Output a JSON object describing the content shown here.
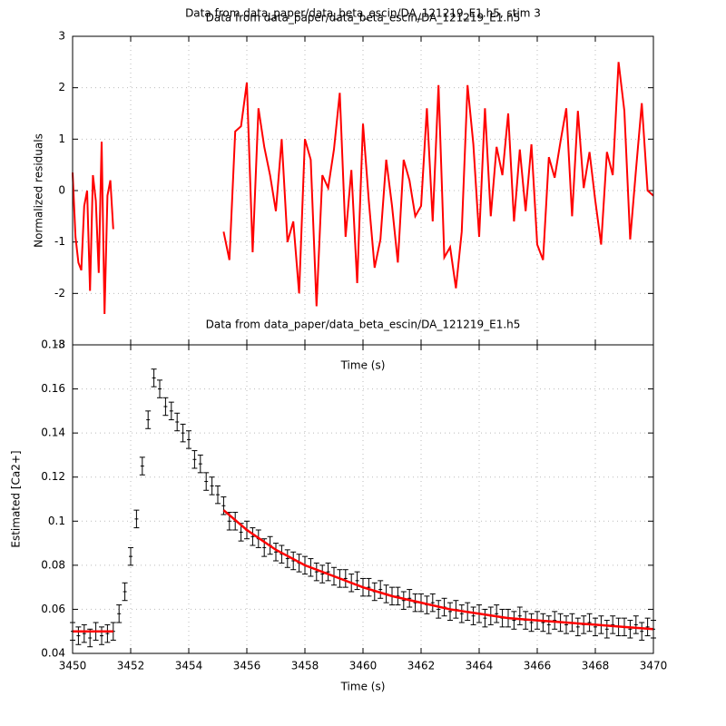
{
  "chart_data": [
    {
      "type": "line",
      "title": "Data from data_paper/data_beta_escin/DA_121219_E1.h5, stim 3",
      "annotations": [
        "Data from data_paper/data_beta_escin/DA_121219_E1.h5",
        "Data from data_paper/data_beta_escin/DA_121219_E1.h5"
      ],
      "xlabel": "Time (s)",
      "ylabel": "Normalized residuals",
      "xlim": [
        3450,
        3470
      ],
      "xticks": [
        3450,
        3452,
        3454,
        3456,
        3458,
        3460,
        3462,
        3464,
        3466,
        3468,
        3470
      ],
      "ylim": [
        -3,
        3
      ],
      "yticks": [
        -3,
        -2,
        -1,
        0,
        1,
        2,
        3
      ],
      "grid": true,
      "series": [
        {
          "color": "#ff0000",
          "x": [
            3450.0,
            3450.1,
            3450.2,
            3450.3,
            3450.4,
            3450.5,
            3450.6,
            3450.7,
            3450.8,
            3450.9,
            3451.0,
            3451.1,
            3451.2,
            3451.3,
            3451.4
          ],
          "values": [
            0.35,
            -0.9,
            -1.4,
            -1.55,
            -0.3,
            0.0,
            -1.95,
            0.3,
            -0.2,
            -1.6,
            0.95,
            -2.4,
            -0.1,
            0.2,
            -0.75
          ]
        },
        {
          "color": "#ff0000",
          "x": [
            3455.2,
            3455.4,
            3455.6,
            3455.8,
            3456.0,
            3456.2,
            3456.4,
            3456.6,
            3456.8,
            3457.0,
            3457.2,
            3457.4,
            3457.6,
            3457.8,
            3458.0,
            3458.2,
            3458.4,
            3458.6,
            3458.8,
            3459.0,
            3459.2,
            3459.4,
            3459.6,
            3459.8,
            3460.0,
            3460.2,
            3460.4,
            3460.6,
            3460.8,
            3461.0,
            3461.2,
            3461.4,
            3461.6,
            3461.8,
            3462.0,
            3462.2,
            3462.4,
            3462.6,
            3462.8,
            3463.0,
            3463.2,
            3463.4,
            3463.6,
            3463.8,
            3464.0,
            3464.2,
            3464.4,
            3464.6,
            3464.8,
            3465.0,
            3465.2,
            3465.4,
            3465.6,
            3465.8,
            3466.0,
            3466.2,
            3466.4,
            3466.6,
            3466.8,
            3467.0,
            3467.2,
            3467.4,
            3467.6,
            3467.8,
            3468.0,
            3468.2,
            3468.4,
            3468.6,
            3468.8,
            3469.0,
            3469.2,
            3469.4,
            3469.6,
            3469.8,
            3470.0
          ],
          "values": [
            -0.8,
            -1.35,
            1.15,
            1.25,
            2.1,
            -1.2,
            1.6,
            0.85,
            0.3,
            -0.4,
            1.0,
            -1.0,
            -0.6,
            -2.0,
            1.0,
            0.6,
            -2.25,
            0.3,
            0.05,
            0.8,
            1.9,
            -0.9,
            0.4,
            -1.8,
            1.3,
            -0.2,
            -1.5,
            -0.95,
            0.6,
            -0.3,
            -1.4,
            0.6,
            0.2,
            -0.5,
            -0.3,
            1.6,
            -0.6,
            2.05,
            -1.3,
            -1.1,
            -1.9,
            -0.8,
            2.05,
            0.9,
            -0.9,
            1.6,
            -0.5,
            0.85,
            0.3,
            1.5,
            -0.6,
            0.8,
            -0.4,
            0.9,
            -1.05,
            -1.35,
            0.65,
            0.25,
            0.95,
            1.6,
            -0.5,
            1.55,
            0.05,
            0.75,
            -0.2,
            -1.05,
            0.75,
            0.3,
            2.5,
            1.55,
            -0.95,
            0.4,
            1.7,
            0,
            -0.1
          ]
        }
      ]
    },
    {
      "type": "errorbar",
      "xlabel": "Time (s)",
      "ylabel": "Estimated [Ca2+]",
      "xlim": [
        3450,
        3470
      ],
      "xticks": [
        3450,
        3452,
        3454,
        3456,
        3458,
        3460,
        3462,
        3464,
        3466,
        3468,
        3470
      ],
      "ylim": [
        0.04,
        0.18
      ],
      "yticks": [
        0.04,
        0.06,
        0.08,
        0.1,
        0.12,
        0.14,
        0.16,
        0.18
      ],
      "grid": true,
      "error": 0.004,
      "series": [
        {
          "color": "#000000",
          "x": [
            3450.0,
            3450.2,
            3450.4,
            3450.6,
            3450.8,
            3451.0,
            3451.2,
            3451.4,
            3451.6,
            3451.8,
            3452.0,
            3452.2,
            3452.4,
            3452.6,
            3452.8,
            3453.0,
            3453.2,
            3453.4,
            3453.6,
            3453.8,
            3454.0,
            3454.2,
            3454.4,
            3454.6,
            3454.8,
            3455.0,
            3455.2,
            3455.4,
            3455.6,
            3455.8,
            3456.0,
            3456.2,
            3456.4,
            3456.6,
            3456.8,
            3457.0,
            3457.2,
            3457.4,
            3457.6,
            3457.8,
            3458.0,
            3458.2,
            3458.4,
            3458.6,
            3458.8,
            3459.0,
            3459.2,
            3459.4,
            3459.6,
            3459.8,
            3460.0,
            3460.2,
            3460.4,
            3460.6,
            3460.8,
            3461.0,
            3461.2,
            3461.4,
            3461.6,
            3461.8,
            3462.0,
            3462.2,
            3462.4,
            3462.6,
            3462.8,
            3463.0,
            3463.2,
            3463.4,
            3463.6,
            3463.8,
            3464.0,
            3464.2,
            3464.4,
            3464.6,
            3464.8,
            3465.0,
            3465.2,
            3465.4,
            3465.6,
            3465.8,
            3466.0,
            3466.2,
            3466.4,
            3466.6,
            3466.8,
            3467.0,
            3467.2,
            3467.4,
            3467.6,
            3467.8,
            3468.0,
            3468.2,
            3468.4,
            3468.6,
            3468.8,
            3469.0,
            3469.2,
            3469.4,
            3469.6,
            3469.8,
            3470.0
          ],
          "values": [
            0.05,
            0.048,
            0.049,
            0.047,
            0.05,
            0.048,
            0.049,
            0.05,
            0.058,
            0.068,
            0.084,
            0.101,
            0.125,
            0.146,
            0.165,
            0.16,
            0.152,
            0.15,
            0.145,
            0.14,
            0.137,
            0.128,
            0.126,
            0.118,
            0.116,
            0.112,
            0.107,
            0.1,
            0.1,
            0.095,
            0.096,
            0.093,
            0.092,
            0.088,
            0.089,
            0.086,
            0.085,
            0.083,
            0.082,
            0.081,
            0.08,
            0.079,
            0.077,
            0.076,
            0.077,
            0.075,
            0.074,
            0.074,
            0.072,
            0.073,
            0.07,
            0.07,
            0.068,
            0.069,
            0.067,
            0.066,
            0.066,
            0.064,
            0.065,
            0.063,
            0.063,
            0.062,
            0.063,
            0.06,
            0.061,
            0.059,
            0.06,
            0.058,
            0.059,
            0.057,
            0.058,
            0.056,
            0.057,
            0.058,
            0.056,
            0.056,
            0.055,
            0.057,
            0.055,
            0.054,
            0.055,
            0.054,
            0.053,
            0.055,
            0.054,
            0.053,
            0.054,
            0.052,
            0.053,
            0.054,
            0.052,
            0.053,
            0.051,
            0.053,
            0.052,
            0.052,
            0.051,
            0.053,
            0.05,
            0.052,
            0.051
          ]
        },
        {
          "color": "#ff0000",
          "fit": true,
          "x": [
            3450.0,
            3451.4
          ],
          "values": [
            0.05,
            0.05
          ]
        },
        {
          "color": "#ff0000",
          "fit": true,
          "x": [
            3455.2,
            3456,
            3457,
            3458,
            3459,
            3460,
            3461,
            3462,
            3463,
            3464,
            3465,
            3466,
            3467,
            3468,
            3469,
            3470
          ],
          "values": [
            0.105,
            0.096,
            0.087,
            0.08,
            0.075,
            0.07,
            0.066,
            0.063,
            0.06,
            0.058,
            0.056,
            0.055,
            0.054,
            0.053,
            0.052,
            0.051
          ]
        }
      ]
    }
  ]
}
